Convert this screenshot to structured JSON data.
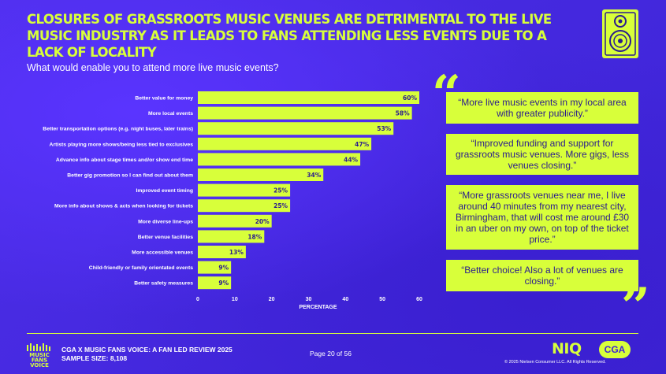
{
  "header": {
    "title": "CLOSURES OF GRASSROOTS MUSIC VENUES ARE DETRIMENTAL TO THE LIVE MUSIC INDUSTRY AS IT LEADS TO FANS ATTENDING LESS EVENTS DUE TO A LACK OF LOCALITY",
    "subtitle": "What would enable you to attend more live music events?",
    "icon": "speaker-icon"
  },
  "chart_data": {
    "type": "bar",
    "orientation": "horizontal",
    "categories": [
      "Better value for money",
      "More local events",
      "Better transportation options (e.g. night buses, later trains)",
      "Artists playing more shows/being less tied to exclusives",
      "Advance info about stage times and/or show end time",
      "Better gig promotion so I can find out about them",
      "Improved event timing",
      "More info about shows & acts when looking for tickets",
      "More diverse line-ups",
      "Better venue facilities",
      "More accessible venues",
      "Child-friendly or family orientated events",
      "Better safety measures"
    ],
    "values": [
      60,
      58,
      53,
      47,
      44,
      34,
      25,
      25,
      20,
      18,
      13,
      9,
      9
    ],
    "value_labels": [
      "60%",
      "58%",
      "53%",
      "47%",
      "44%",
      "34%",
      "25%",
      "25%",
      "20%",
      "18%",
      "13%",
      "9%",
      "9%"
    ],
    "xlabel": "PERCENTAGE",
    "xticks": [
      "0",
      "10",
      "20",
      "30",
      "40",
      "50",
      "60"
    ],
    "xlim": [
      0,
      60
    ],
    "bar_color": "#d8ff3a",
    "grid": false
  },
  "quotes": [
    "“More live music events in my local area with greater publicity.”",
    "“Improved funding and support for grassroots music venues. More gigs, less venues closing.”",
    "“More grassroots venues near me, I live around 40 minutes from my nearest city, Birmingham, that will cost me around £30 in an uber on my own, on top of the ticket price.”",
    "“Better choice! Also a lot of venues are closing.”"
  ],
  "footer": {
    "logo_text": "MUSIC FANS VOICE",
    "line1": "CGA X MUSIC FANS VOICE: A FAN LED REVIEW 2025",
    "line2": "SAMPLE SIZE: 8,108",
    "page": "Page 20 of 56",
    "niq": "NIQ",
    "cga": "CGA",
    "copyright": "© 2025 Nielsen Consumer LLC. All Rights Reserved."
  },
  "colors": {
    "accent": "#d8ff3a",
    "background": "#4a2be0",
    "quote_text": "#2a1b8f"
  }
}
